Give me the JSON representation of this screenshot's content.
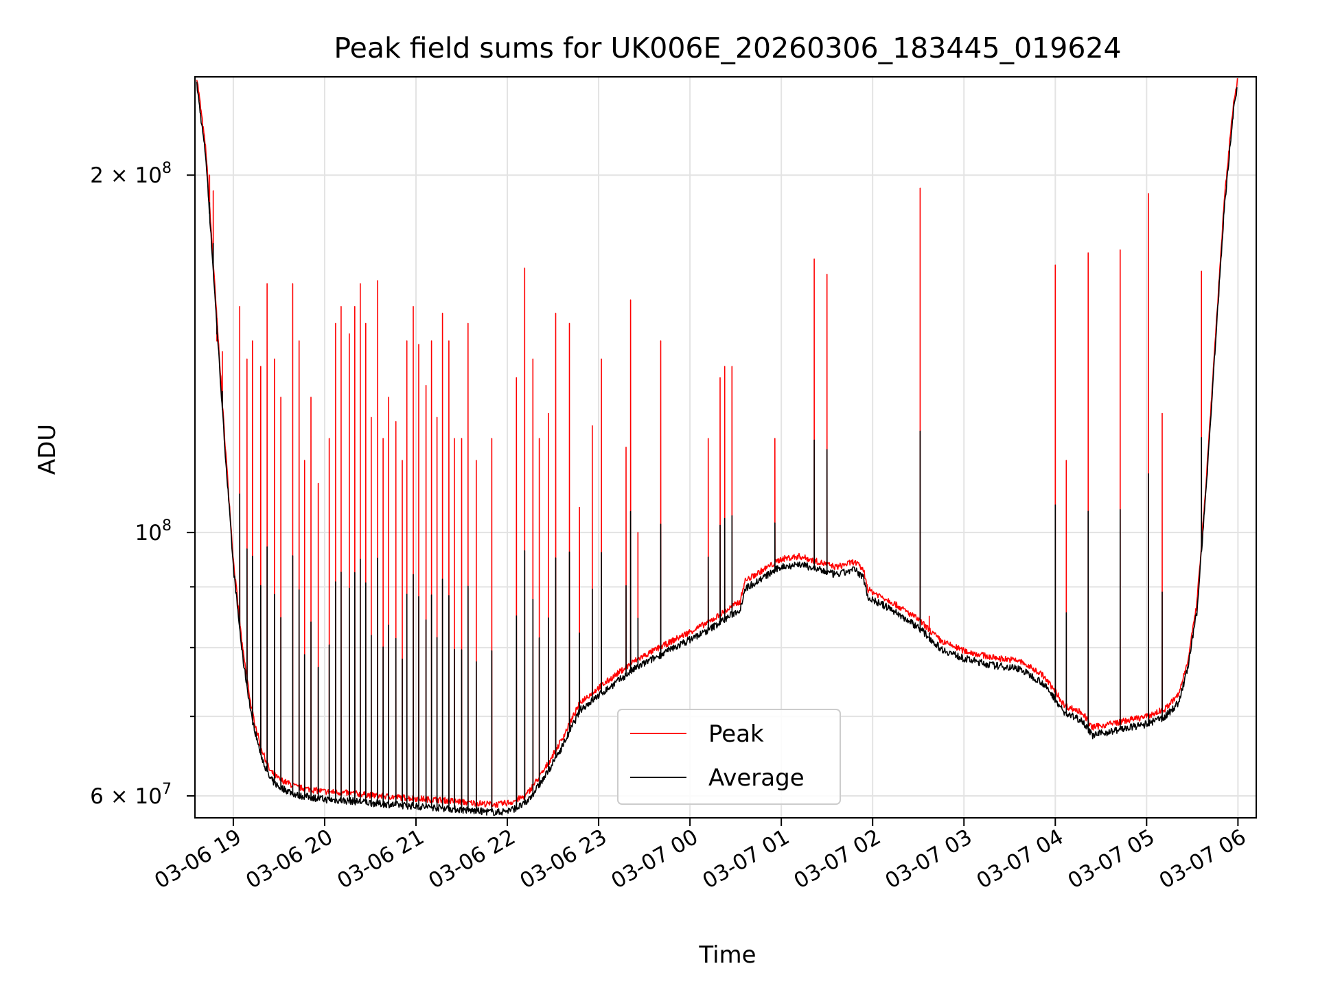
{
  "chart_data": {
    "type": "line",
    "title": "Peak field sums for UK006E_20260306_183445_019624",
    "xlabel": "Time",
    "ylabel": "ADU",
    "yscale": "log",
    "xlim": [
      18.58,
      30.2
    ],
    "ylim": [
      57500000.0,
      242000000.0
    ],
    "grid": true,
    "legend_position": "lower-center",
    "x_ticks": [
      {
        "value": 19,
        "label": "03-06 19"
      },
      {
        "value": 20,
        "label": "03-06 20"
      },
      {
        "value": 21,
        "label": "03-06 21"
      },
      {
        "value": 22,
        "label": "03-06 22"
      },
      {
        "value": 23,
        "label": "03-06 23"
      },
      {
        "value": 24,
        "label": "03-07 00"
      },
      {
        "value": 25,
        "label": "03-07 01"
      },
      {
        "value": 26,
        "label": "03-07 02"
      },
      {
        "value": 27,
        "label": "03-07 03"
      },
      {
        "value": 28,
        "label": "03-07 04"
      },
      {
        "value": 29,
        "label": "03-07 05"
      },
      {
        "value": 30,
        "label": "03-07 06"
      }
    ],
    "y_major_ticks": [
      {
        "value": 60000000,
        "base": "6 × 10",
        "exp": "7"
      },
      {
        "value": 100000000,
        "base": "10",
        "exp": "8"
      },
      {
        "value": 200000000,
        "base": "2 × 10",
        "exp": "8"
      }
    ],
    "y_minor_ticks": [
      70000000,
      80000000,
      90000000
    ],
    "series": [
      {
        "name": "Peak",
        "color": "#ff0000",
        "baseline_points": [
          [
            18.6,
            242000000.0
          ],
          [
            18.7,
            210000000.0
          ],
          [
            18.8,
            160000000.0
          ],
          [
            18.9,
            122000000.0
          ],
          [
            19.0,
            95000000.0
          ],
          [
            19.1,
            80000000.0
          ],
          [
            19.2,
            71000000.0
          ],
          [
            19.3,
            66000000.0
          ],
          [
            19.4,
            63000000.0
          ],
          [
            19.5,
            62000000.0
          ],
          [
            19.7,
            61000000.0
          ],
          [
            20.0,
            60500000.0
          ],
          [
            20.3,
            60300000.0
          ],
          [
            20.6,
            60000000.0
          ],
          [
            21.0,
            59700000.0
          ],
          [
            21.3,
            59500000.0
          ],
          [
            21.6,
            59200000.0
          ],
          [
            21.9,
            59000000.0
          ],
          [
            22.05,
            59300000.0
          ],
          [
            22.2,
            60000000.0
          ],
          [
            22.4,
            63000000.0
          ],
          [
            22.6,
            67000000.0
          ],
          [
            22.8,
            72000000.0
          ],
          [
            23.0,
            74000000.0
          ],
          [
            23.2,
            76000000.0
          ],
          [
            23.4,
            78000000.0
          ],
          [
            23.6,
            79500000.0
          ],
          [
            23.8,
            81000000.0
          ],
          [
            24.0,
            82500000.0
          ],
          [
            24.2,
            84000000.0
          ],
          [
            24.4,
            86000000.0
          ],
          [
            24.55,
            87500000.0
          ],
          [
            24.6,
            91000000.0
          ],
          [
            24.8,
            93000000.0
          ],
          [
            25.0,
            95000000.0
          ],
          [
            25.2,
            95500000.0
          ],
          [
            25.4,
            94500000.0
          ],
          [
            25.6,
            93500000.0
          ],
          [
            25.8,
            94500000.0
          ],
          [
            25.9,
            93000000.0
          ],
          [
            25.95,
            89500000.0
          ],
          [
            26.2,
            87500000.0
          ],
          [
            26.5,
            84500000.0
          ],
          [
            26.75,
            81000000.0
          ],
          [
            27.0,
            79500000.0
          ],
          [
            27.3,
            78500000.0
          ],
          [
            27.6,
            78000000.0
          ],
          [
            27.85,
            76000000.0
          ],
          [
            28.0,
            73500000.0
          ],
          [
            28.1,
            71500000.0
          ],
          [
            28.3,
            70500000.0
          ],
          [
            28.4,
            68500000.0
          ],
          [
            28.6,
            69000000.0
          ],
          [
            28.8,
            69500000.0
          ],
          [
            29.0,
            70000000.0
          ],
          [
            29.2,
            71000000.0
          ],
          [
            29.35,
            73000000.0
          ],
          [
            29.45,
            78000000.0
          ],
          [
            29.55,
            87000000.0
          ],
          [
            29.65,
            110000000.0
          ],
          [
            29.75,
            145000000.0
          ],
          [
            29.85,
            190000000.0
          ],
          [
            29.95,
            230000000.0
          ],
          [
            30.0,
            242000000.0
          ]
        ],
        "spikes": [
          [
            18.74,
            200000000.0
          ],
          [
            18.78,
            194000000.0
          ],
          [
            18.82,
            145000000.0
          ],
          [
            18.88,
            142000000.0
          ],
          [
            19.07,
            155000000.0
          ],
          [
            19.15,
            140000000.0
          ],
          [
            19.21,
            145000000.0
          ],
          [
            19.3,
            138000000.0
          ],
          [
            19.37,
            162000000.0
          ],
          [
            19.45,
            140000000.0
          ],
          [
            19.52,
            130000000.0
          ],
          [
            19.65,
            162000000.0
          ],
          [
            19.72,
            145000000.0
          ],
          [
            19.78,
            115000000.0
          ],
          [
            19.85,
            130000000.0
          ],
          [
            19.93,
            110000000.0
          ],
          [
            20.05,
            120000000.0
          ],
          [
            20.12,
            150000000.0
          ],
          [
            20.18,
            155000000.0
          ],
          [
            20.27,
            147000000.0
          ],
          [
            20.33,
            155000000.0
          ],
          [
            20.39,
            162000000.0
          ],
          [
            20.45,
            150000000.0
          ],
          [
            20.51,
            125000000.0
          ],
          [
            20.58,
            163000000.0
          ],
          [
            20.64,
            120000000.0
          ],
          [
            20.7,
            130000000.0
          ],
          [
            20.78,
            124000000.0
          ],
          [
            20.85,
            115000000.0
          ],
          [
            20.9,
            145000000.0
          ],
          [
            20.97,
            155000000.0
          ],
          [
            21.03,
            144000000.0
          ],
          [
            21.11,
            133000000.0
          ],
          [
            21.17,
            145000000.0
          ],
          [
            21.23,
            125000000.0
          ],
          [
            21.29,
            153000000.0
          ],
          [
            21.36,
            145000000.0
          ],
          [
            21.42,
            120000000.0
          ],
          [
            21.5,
            120000000.0
          ],
          [
            21.57,
            150000000.0
          ],
          [
            21.66,
            115000000.0
          ],
          [
            21.83,
            120000000.0
          ],
          [
            22.1,
            135000000.0
          ],
          [
            22.19,
            167000000.0
          ],
          [
            22.28,
            140000000.0
          ],
          [
            22.35,
            120000000.0
          ],
          [
            22.45,
            126000000.0
          ],
          [
            22.53,
            153000000.0
          ],
          [
            22.68,
            150000000.0
          ],
          [
            22.79,
            105000000.0
          ],
          [
            22.93,
            123000000.0
          ],
          [
            23.03,
            140000000.0
          ],
          [
            23.3,
            118000000.0
          ],
          [
            23.35,
            157000000.0
          ],
          [
            23.43,
            100000000.0
          ],
          [
            23.68,
            145000000.0
          ],
          [
            24.2,
            120000000.0
          ],
          [
            24.33,
            135000000.0
          ],
          [
            24.38,
            138000000.0
          ],
          [
            24.46,
            138000000.0
          ],
          [
            24.93,
            120000000.0
          ],
          [
            25.36,
            170000000.0
          ],
          [
            25.5,
            165000000.0
          ],
          [
            26.52,
            195000000.0
          ],
          [
            26.62,
            85000000.0
          ],
          [
            28.0,
            168000000.0
          ],
          [
            28.12,
            115000000.0
          ],
          [
            28.36,
            172000000.0
          ],
          [
            28.71,
            173000000.0
          ],
          [
            29.02,
            193000000.0
          ],
          [
            29.17,
            126000000.0
          ],
          [
            29.6,
            166000000.0
          ]
        ]
      },
      {
        "name": "Average",
        "color": "#000000",
        "offset": 0.985,
        "spike_fraction": 0.35
      }
    ]
  }
}
